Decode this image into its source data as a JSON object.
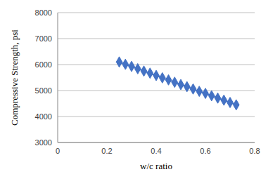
{
  "chart_data": {
    "type": "scatter",
    "x_label": "w/c ratio",
    "y_label": "Compressive Strength, psi",
    "x": [
      0.25,
      0.275,
      0.3,
      0.325,
      0.35,
      0.375,
      0.4,
      0.425,
      0.45,
      0.475,
      0.5,
      0.525,
      0.55,
      0.575,
      0.6,
      0.625,
      0.65,
      0.675,
      0.7,
      0.725
    ],
    "values": [
      6100,
      6010,
      5930,
      5840,
      5750,
      5670,
      5580,
      5490,
      5410,
      5320,
      5230,
      5150,
      5060,
      4970,
      4890,
      4800,
      4710,
      4630,
      4540,
      4450
    ],
    "color": "#4472c4",
    "marker": "diamond",
    "line_style": "solid",
    "xlim": [
      0,
      0.8
    ],
    "xticks": [
      0,
      0.2,
      0.4,
      0.6,
      0.8
    ],
    "ylim": [
      3000,
      8000
    ],
    "yticks": [
      3000,
      4000,
      5000,
      6000,
      7000,
      8000
    ],
    "grid": true
  }
}
